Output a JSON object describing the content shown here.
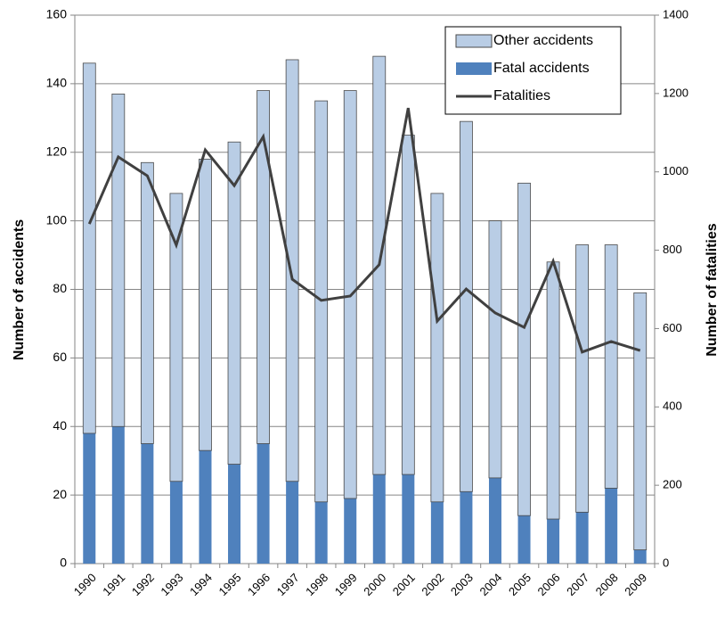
{
  "chart_data": {
    "type": "bar",
    "y_label": "Number of accidents",
    "y2_label": "Number of fatalities",
    "categories": [
      "1990",
      "1991",
      "1992",
      "1993",
      "1994",
      "1995",
      "1996",
      "1997",
      "1998",
      "1999",
      "2000",
      "2001",
      "2002",
      "2003",
      "2004",
      "2005",
      "2006",
      "2007",
      "2008",
      "2009"
    ],
    "series": [
      {
        "name": "Other accidents",
        "type": "bar",
        "color": "#b9cde5",
        "values": [
          108,
          97,
          82,
          84,
          85,
          94,
          103,
          123,
          117,
          119,
          122,
          99,
          90,
          108,
          75,
          97,
          75,
          78,
          71,
          75
        ]
      },
      {
        "name": "Fatal accidents",
        "type": "bar",
        "color": "#4f81bd",
        "values": [
          38,
          40,
          35,
          24,
          33,
          29,
          35,
          24,
          18,
          19,
          26,
          26,
          18,
          21,
          25,
          14,
          13,
          15,
          22,
          4
        ]
      },
      {
        "name": "Fatalities",
        "type": "line",
        "axis": "y2",
        "color": "#404040",
        "values": [
          867,
          1038,
          990,
          813,
          1056,
          965,
          1090,
          726,
          672,
          683,
          763,
          1163,
          619,
          701,
          640,
          603,
          772,
          540,
          567,
          544
        ]
      }
    ],
    "ylim": [
      0,
      160
    ],
    "yticks": [
      0,
      20,
      40,
      60,
      80,
      100,
      120,
      140,
      160
    ],
    "y2lim": [
      0,
      1400
    ],
    "y2ticks": [
      0,
      200,
      400,
      600,
      800,
      1000,
      1200,
      1400
    ],
    "grid": true,
    "legend": "top-right",
    "stacked": true
  }
}
